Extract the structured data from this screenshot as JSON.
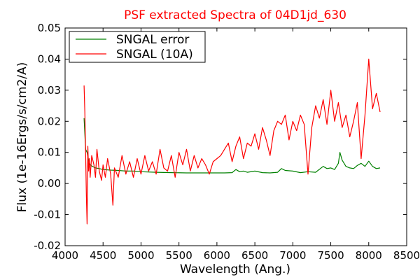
{
  "chart_data": {
    "type": "line",
    "title": "PSF extracted Spectra of 04D1jd_630",
    "xlabel": "Wavelength (Ang.)",
    "ylabel": "Flux (1e-16Ergs/s/cm2/A)",
    "xlim": [
      4000,
      8500
    ],
    "ylim": [
      -0.02,
      0.05
    ],
    "xticks": [
      4000,
      4500,
      5000,
      5500,
      6000,
      6500,
      7000,
      7500,
      8000,
      8500
    ],
    "yticks": [
      -0.02,
      -0.01,
      0.0,
      0.01,
      0.02,
      0.03,
      0.04,
      0.05
    ],
    "xtick_labels": [
      "4000",
      "4500",
      "5000",
      "5500",
      "6000",
      "6500",
      "7000",
      "7500",
      "8000",
      "8500"
    ],
    "ytick_labels": [
      "-0.02",
      "-0.01",
      "0.00",
      "0.01",
      "0.02",
      "0.03",
      "0.04",
      "0.05"
    ],
    "grid": false,
    "legend_position": "top-left",
    "series": [
      {
        "name": "SNGAL error",
        "color": "#008000",
        "x": [
          4250,
          4270,
          4290,
          4310,
          4330,
          4360,
          4400,
          4450,
          4500,
          4600,
          4700,
          4800,
          4900,
          5000,
          5200,
          5400,
          5600,
          5800,
          6000,
          6100,
          6200,
          6250,
          6300,
          6350,
          6400,
          6500,
          6600,
          6700,
          6800,
          6850,
          6900,
          7000,
          7100,
          7200,
          7300,
          7400,
          7450,
          7500,
          7550,
          7600,
          7620,
          7650,
          7700,
          7750,
          7800,
          7850,
          7900,
          7950,
          8000,
          8050,
          8100,
          8150
        ],
        "y": [
          0.021,
          0.011,
          0.01,
          0.0075,
          0.006,
          0.0055,
          0.005,
          0.0048,
          0.0045,
          0.0043,
          0.0042,
          0.004,
          0.004,
          0.0038,
          0.0036,
          0.0035,
          0.0034,
          0.0034,
          0.0034,
          0.0034,
          0.0035,
          0.0045,
          0.0038,
          0.004,
          0.0036,
          0.004,
          0.0035,
          0.0034,
          0.0036,
          0.0048,
          0.0042,
          0.004,
          0.0035,
          0.0038,
          0.0036,
          0.0055,
          0.0048,
          0.005,
          0.0045,
          0.0065,
          0.01,
          0.0075,
          0.0055,
          0.005,
          0.0048,
          0.0058,
          0.0065,
          0.0055,
          0.0072,
          0.0055,
          0.0048,
          0.005
        ]
      },
      {
        "name": "SNGAL (10A)",
        "color": "#ff0000",
        "x": [
          4250,
          4260,
          4270,
          4280,
          4290,
          4300,
          4310,
          4320,
          4330,
          4350,
          4380,
          4400,
          4420,
          4450,
          4480,
          4500,
          4530,
          4560,
          4600,
          4630,
          4650,
          4700,
          4750,
          4800,
          4850,
          4900,
          4950,
          5000,
          5050,
          5100,
          5150,
          5200,
          5250,
          5300,
          5350,
          5400,
          5450,
          5500,
          5550,
          5600,
          5650,
          5700,
          5750,
          5800,
          5850,
          5900,
          5950,
          6000,
          6050,
          6100,
          6150,
          6200,
          6250,
          6300,
          6350,
          6400,
          6450,
          6500,
          6550,
          6600,
          6650,
          6700,
          6750,
          6800,
          6850,
          6900,
          6950,
          7000,
          7050,
          7100,
          7150,
          7200,
          7250,
          7300,
          7350,
          7400,
          7450,
          7500,
          7550,
          7600,
          7650,
          7700,
          7750,
          7800,
          7850,
          7900,
          7950,
          8000,
          8050,
          8100,
          8150
        ],
        "y": [
          0.0315,
          0.023,
          0.01,
          -0.004,
          -0.013,
          0.012,
          0.004,
          0.008,
          0.002,
          0.009,
          0.006,
          0.002,
          0.011,
          0.004,
          0.001,
          0.006,
          0.002,
          0.008,
          0.003,
          -0.007,
          0.005,
          0.002,
          0.009,
          0.003,
          0.007,
          0.002,
          0.008,
          0.003,
          0.009,
          0.004,
          0.007,
          0.003,
          0.011,
          0.005,
          0.004,
          0.009,
          0.002,
          0.01,
          0.006,
          0.011,
          0.004,
          0.009,
          0.005,
          0.008,
          0.006,
          0.003,
          0.007,
          0.008,
          0.009,
          0.011,
          0.013,
          0.007,
          0.012,
          0.015,
          0.008,
          0.013,
          0.012,
          0.016,
          0.011,
          0.018,
          0.014,
          0.009,
          0.017,
          0.02,
          0.019,
          0.022,
          0.014,
          0.02,
          0.017,
          0.022,
          0.019,
          0.003,
          0.018,
          0.025,
          0.021,
          0.027,
          0.019,
          0.03,
          0.02,
          0.026,
          0.018,
          0.022,
          0.015,
          0.02,
          0.026,
          0.008,
          0.022,
          0.04,
          0.024,
          0.029,
          0.023
        ]
      }
    ]
  }
}
